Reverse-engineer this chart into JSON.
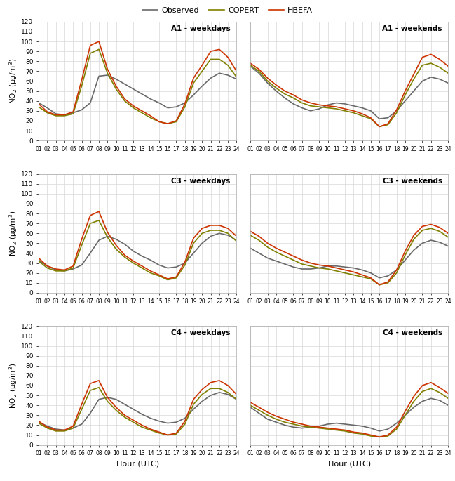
{
  "hours": [
    1,
    2,
    3,
    4,
    5,
    6,
    7,
    8,
    9,
    10,
    11,
    12,
    13,
    14,
    15,
    16,
    17,
    18,
    19,
    20,
    21,
    22,
    23,
    24
  ],
  "colors": {
    "observed": "#696969",
    "copert": "#808000",
    "hbefa": "#cc3300"
  },
  "legend_labels": [
    "Observed",
    "COPERT",
    "HBEFA"
  ],
  "subplot_titles": [
    [
      "A1 - weekdays",
      "A1 - weekends"
    ],
    [
      "C3 - weekdays",
      "C3 - weekends"
    ],
    [
      "C4 - weekdays",
      "C4 - weekends"
    ]
  ],
  "ylabel": "NO$_2$ (μg/m$^3$)",
  "xlabel": "Hour (UTC)",
  "ylim": [
    0,
    120
  ],
  "yticks": [
    0,
    10,
    20,
    30,
    40,
    50,
    60,
    70,
    80,
    90,
    100,
    110,
    120
  ],
  "A1_weekdays": {
    "observed": [
      38,
      33,
      27,
      26,
      28,
      31,
      38,
      65,
      66,
      62,
      57,
      52,
      47,
      42,
      38,
      33,
      34,
      38,
      46,
      55,
      63,
      68,
      66,
      62
    ],
    "copert": [
      34,
      28,
      25,
      25,
      27,
      55,
      88,
      92,
      68,
      52,
      40,
      33,
      28,
      23,
      19,
      17,
      19,
      34,
      58,
      70,
      82,
      82,
      76,
      64
    ],
    "hbefa": [
      37,
      29,
      26,
      26,
      29,
      61,
      96,
      100,
      72,
      55,
      42,
      35,
      30,
      25,
      19,
      17,
      20,
      37,
      63,
      76,
      90,
      92,
      84,
      70
    ]
  },
  "A1_weekends": {
    "observed": [
      75,
      68,
      58,
      50,
      43,
      37,
      33,
      30,
      32,
      36,
      38,
      37,
      35,
      33,
      30,
      22,
      23,
      30,
      40,
      50,
      60,
      64,
      62,
      58
    ],
    "copert": [
      76,
      70,
      60,
      53,
      47,
      43,
      38,
      35,
      34,
      33,
      32,
      30,
      28,
      25,
      22,
      14,
      16,
      28,
      46,
      62,
      76,
      78,
      74,
      68
    ],
    "hbefa": [
      78,
      72,
      63,
      56,
      50,
      46,
      41,
      38,
      36,
      35,
      34,
      32,
      30,
      27,
      23,
      14,
      17,
      31,
      50,
      67,
      84,
      87,
      82,
      75
    ]
  },
  "C3_weekdays": {
    "observed": [
      33,
      27,
      23,
      22,
      24,
      28,
      40,
      53,
      57,
      54,
      49,
      42,
      37,
      33,
      28,
      25,
      26,
      30,
      40,
      50,
      57,
      60,
      58,
      53
    ],
    "copert": [
      32,
      25,
      22,
      22,
      25,
      48,
      70,
      73,
      56,
      44,
      36,
      30,
      25,
      20,
      17,
      13,
      15,
      28,
      50,
      60,
      63,
      63,
      60,
      52
    ],
    "hbefa": [
      35,
      27,
      24,
      23,
      27,
      54,
      78,
      82,
      61,
      48,
      38,
      32,
      27,
      22,
      18,
      14,
      16,
      31,
      55,
      65,
      68,
      68,
      65,
      57
    ]
  },
  "C3_weekends": {
    "observed": [
      45,
      40,
      35,
      32,
      29,
      26,
      24,
      24,
      25,
      27,
      27,
      26,
      25,
      23,
      20,
      15,
      17,
      23,
      33,
      43,
      50,
      53,
      51,
      47
    ],
    "copert": [
      58,
      53,
      46,
      41,
      37,
      33,
      29,
      27,
      25,
      24,
      22,
      20,
      18,
      16,
      14,
      8,
      10,
      20,
      38,
      54,
      63,
      65,
      62,
      56
    ],
    "hbefa": [
      62,
      57,
      50,
      45,
      41,
      37,
      33,
      30,
      28,
      27,
      25,
      23,
      21,
      18,
      15,
      8,
      11,
      23,
      42,
      58,
      67,
      69,
      66,
      60
    ]
  },
  "C4_weekdays": {
    "observed": [
      23,
      19,
      16,
      15,
      17,
      21,
      32,
      46,
      48,
      46,
      41,
      36,
      31,
      27,
      24,
      22,
      23,
      27,
      36,
      44,
      50,
      53,
      51,
      46
    ],
    "copert": [
      22,
      17,
      14,
      14,
      17,
      36,
      55,
      58,
      44,
      35,
      28,
      23,
      18,
      15,
      12,
      10,
      11,
      21,
      41,
      51,
      57,
      57,
      53,
      46
    ],
    "hbefa": [
      24,
      18,
      15,
      15,
      19,
      41,
      62,
      65,
      48,
      38,
      30,
      25,
      20,
      16,
      13,
      10,
      12,
      24,
      46,
      56,
      63,
      65,
      60,
      51
    ]
  },
  "C4_weekends": {
    "observed": [
      38,
      32,
      26,
      23,
      20,
      18,
      17,
      18,
      19,
      21,
      22,
      21,
      20,
      19,
      17,
      14,
      16,
      22,
      30,
      38,
      44,
      47,
      45,
      40
    ],
    "copert": [
      40,
      35,
      30,
      26,
      23,
      21,
      19,
      18,
      17,
      16,
      15,
      14,
      12,
      11,
      9,
      8,
      9,
      16,
      30,
      44,
      54,
      57,
      53,
      47
    ],
    "hbefa": [
      43,
      38,
      33,
      29,
      26,
      23,
      21,
      19,
      18,
      17,
      16,
      15,
      13,
      12,
      10,
      8,
      10,
      18,
      34,
      49,
      60,
      63,
      58,
      52
    ]
  }
}
